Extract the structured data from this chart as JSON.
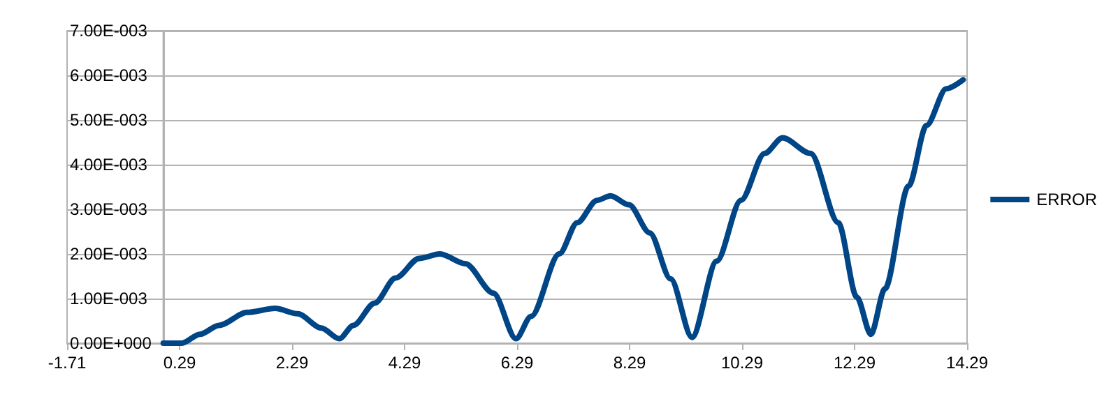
{
  "chart_data": {
    "type": "line",
    "x": [
      0,
      0.33,
      0.65,
      0.99,
      1.49,
      1.99,
      2.39,
      2.81,
      3.13,
      3.38,
      3.76,
      4.13,
      4.55,
      4.92,
      5.37,
      5.87,
      6.27,
      6.54,
      7.04,
      7.36,
      7.71,
      7.95,
      8.28,
      8.65,
      9.02,
      9.4,
      9.84,
      10.27,
      10.69,
      11.01,
      11.51,
      12.0,
      12.33,
      12.58,
      12.83,
      13.25,
      13.57,
      13.92,
      14.22
    ],
    "series": [
      {
        "name": "ERROR",
        "color": "#004586",
        "values": [
          0,
          0,
          0.0002,
          0.0004,
          0.00069,
          0.00078,
          0.00066,
          0.00034,
          0.0001,
          0.0004,
          0.0009,
          0.00146,
          0.0019,
          0.002,
          0.00178,
          0.00112,
          0.0001,
          0.0006,
          0.002,
          0.0027,
          0.0032,
          0.0033,
          0.0031,
          0.00247,
          0.00144,
          0.00013,
          0.00184,
          0.0032,
          0.00425,
          0.0046,
          0.00425,
          0.0027,
          0.00103,
          0.0002,
          0.00122,
          0.00352,
          0.00488,
          0.0057,
          0.0059
        ]
      }
    ],
    "xlim": [
      -1.71,
      14.29
    ],
    "xticks": [
      -1.71,
      0.29,
      2.29,
      4.29,
      6.29,
      8.29,
      10.29,
      12.29,
      14.29
    ],
    "ylim": [
      0,
      0.007
    ],
    "yticks": [
      {
        "value": 0,
        "label": "0.00E+000"
      },
      {
        "value": 0.001,
        "label": "1.00E-003"
      },
      {
        "value": 0.002,
        "label": "2.00E-003"
      },
      {
        "value": 0.003,
        "label": "3.00E-003"
      },
      {
        "value": 0.004,
        "label": "4.00E-003"
      },
      {
        "value": 0.005,
        "label": "5.00E-003"
      },
      {
        "value": 0.006,
        "label": "6.00E-003"
      },
      {
        "value": 0.007,
        "label": "7.00E-003"
      }
    ],
    "ref_lines": [
      {
        "axis": "x",
        "value": 0,
        "color": "#b3b3b3"
      }
    ],
    "grid": "y",
    "legend": "right",
    "marker": "none",
    "line_style": "solid"
  }
}
